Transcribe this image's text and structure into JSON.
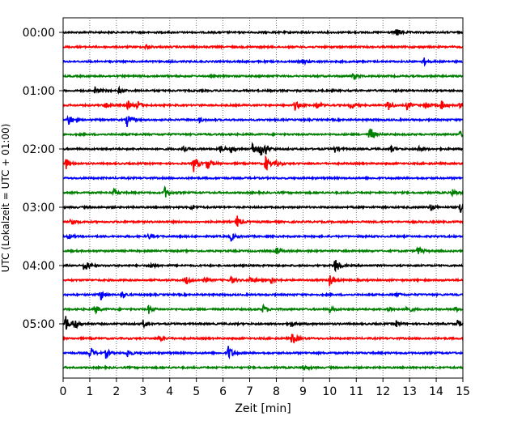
{
  "chart_data": {
    "type": "line",
    "subtype": "helicorder-seismogram",
    "title": "",
    "xlabel": "Zeit  [min]",
    "ylabel": "UTC (Lokalzeit = UTC + 01:00)",
    "xlim": [
      0,
      15
    ],
    "x_ticks": [
      "0",
      "1",
      "2",
      "3",
      "4",
      "5",
      "6",
      "7",
      "8",
      "9",
      "10",
      "11",
      "12",
      "13",
      "14",
      "15"
    ],
    "y_tick_labels": [
      "00:00",
      "01:00",
      "02:00",
      "03:00",
      "04:00",
      "05:00"
    ],
    "minutes_per_line": 15,
    "grid": "vertical dotted at each minute",
    "line_colors": [
      "#000000",
      "#ff0000",
      "#0000ff",
      "#008000"
    ],
    "lines": [
      {
        "start": "00:00",
        "color": "#000000",
        "events": [
          [
            12.5,
            0.55
          ]
        ]
      },
      {
        "start": "00:15",
        "color": "#ff0000",
        "events": [
          [
            3.1,
            0.3
          ]
        ]
      },
      {
        "start": "00:30",
        "color": "#0000ff",
        "events": [
          [
            9.0,
            0.3
          ],
          [
            13.5,
            0.55
          ]
        ]
      },
      {
        "start": "00:45",
        "color": "#008000",
        "events": [
          [
            10.9,
            0.35
          ]
        ]
      },
      {
        "start": "01:00",
        "color": "#000000",
        "events": [
          [
            1.2,
            0.45
          ],
          [
            2.1,
            0.3
          ]
        ]
      },
      {
        "start": "01:15",
        "color": "#ff0000",
        "events": [
          [
            1.6,
            0.4
          ],
          [
            2.4,
            0.55
          ],
          [
            2.8,
            0.45
          ],
          [
            8.7,
            0.5
          ],
          [
            9.5,
            0.45
          ],
          [
            10.8,
            0.5
          ],
          [
            12.2,
            0.6
          ],
          [
            12.9,
            0.5
          ],
          [
            13.6,
            0.45
          ],
          [
            14.2,
            0.6
          ],
          [
            14.9,
            0.35
          ]
        ]
      },
      {
        "start": "01:30",
        "color": "#0000ff",
        "events": [
          [
            0.2,
            0.65
          ],
          [
            2.4,
            0.75
          ],
          [
            5.1,
            0.25
          ]
        ]
      },
      {
        "start": "01:45",
        "color": "#008000",
        "events": [
          [
            11.5,
            1.0
          ],
          [
            14.9,
            0.3
          ]
        ]
      },
      {
        "start": "02:00",
        "color": "#000000",
        "events": [
          [
            4.5,
            0.3
          ],
          [
            5.9,
            0.45
          ],
          [
            6.3,
            0.4
          ],
          [
            7.1,
            0.55
          ],
          [
            7.4,
            0.75
          ],
          [
            7.6,
            0.45
          ],
          [
            10.2,
            0.35
          ],
          [
            12.3,
            0.35
          ],
          [
            13.3,
            0.35
          ]
        ]
      },
      {
        "start": "02:15",
        "color": "#ff0000",
        "events": [
          [
            0.1,
            0.65
          ],
          [
            4.9,
            1.0
          ],
          [
            5.4,
            0.8
          ],
          [
            7.6,
            0.9
          ],
          [
            8.0,
            0.3
          ]
        ]
      },
      {
        "start": "02:30",
        "color": "#0000ff",
        "events": []
      },
      {
        "start": "02:45",
        "color": "#008000",
        "events": [
          [
            1.9,
            0.35
          ],
          [
            3.8,
            0.7
          ],
          [
            14.6,
            0.45
          ]
        ]
      },
      {
        "start": "03:00",
        "color": "#000000",
        "events": [
          [
            4.8,
            0.3
          ],
          [
            13.8,
            0.4
          ],
          [
            14.9,
            0.9
          ]
        ]
      },
      {
        "start": "03:15",
        "color": "#ff0000",
        "events": [
          [
            0.3,
            0.45
          ],
          [
            6.5,
            0.85
          ]
        ]
      },
      {
        "start": "03:30",
        "color": "#0000ff",
        "events": [
          [
            0.2,
            0.3
          ],
          [
            3.2,
            0.3
          ],
          [
            6.3,
            0.45
          ]
        ]
      },
      {
        "start": "03:45",
        "color": "#008000",
        "events": [
          [
            8.0,
            0.45
          ],
          [
            13.3,
            0.55
          ]
        ]
      },
      {
        "start": "04:00",
        "color": "#000000",
        "events": [
          [
            0.8,
            0.8
          ],
          [
            3.3,
            0.35
          ],
          [
            10.2,
            1.0
          ]
        ]
      },
      {
        "start": "04:15",
        "color": "#ff0000",
        "events": [
          [
            4.6,
            0.6
          ],
          [
            5.3,
            0.35
          ],
          [
            6.3,
            0.5
          ],
          [
            7.0,
            0.4
          ],
          [
            7.8,
            0.35
          ],
          [
            10.0,
            0.75
          ]
        ]
      },
      {
        "start": "04:30",
        "color": "#0000ff",
        "events": [
          [
            1.4,
            0.65
          ],
          [
            2.2,
            0.4
          ],
          [
            12.5,
            0.25
          ]
        ]
      },
      {
        "start": "04:45",
        "color": "#008000",
        "events": [
          [
            1.2,
            0.5
          ],
          [
            3.2,
            0.5
          ],
          [
            7.5,
            0.55
          ],
          [
            10.0,
            0.35
          ],
          [
            12.2,
            0.35
          ],
          [
            12.9,
            0.5
          ],
          [
            14.7,
            0.3
          ]
        ]
      },
      {
        "start": "05:00",
        "color": "#000000",
        "events": [
          [
            0.1,
            0.9
          ],
          [
            0.4,
            0.7
          ],
          [
            3.0,
            0.4
          ],
          [
            8.5,
            0.45
          ],
          [
            12.5,
            0.35
          ],
          [
            14.8,
            0.4
          ]
        ]
      },
      {
        "start": "05:15",
        "color": "#ff0000",
        "events": [
          [
            3.6,
            0.4
          ],
          [
            8.6,
            0.85
          ]
        ]
      },
      {
        "start": "05:30",
        "color": "#0000ff",
        "events": [
          [
            1.0,
            0.8
          ],
          [
            1.6,
            0.55
          ],
          [
            2.4,
            0.55
          ],
          [
            6.2,
            0.9
          ]
        ]
      },
      {
        "start": "05:45",
        "color": "#008000",
        "events": [
          [
            9.0,
            0.3
          ]
        ]
      }
    ]
  }
}
